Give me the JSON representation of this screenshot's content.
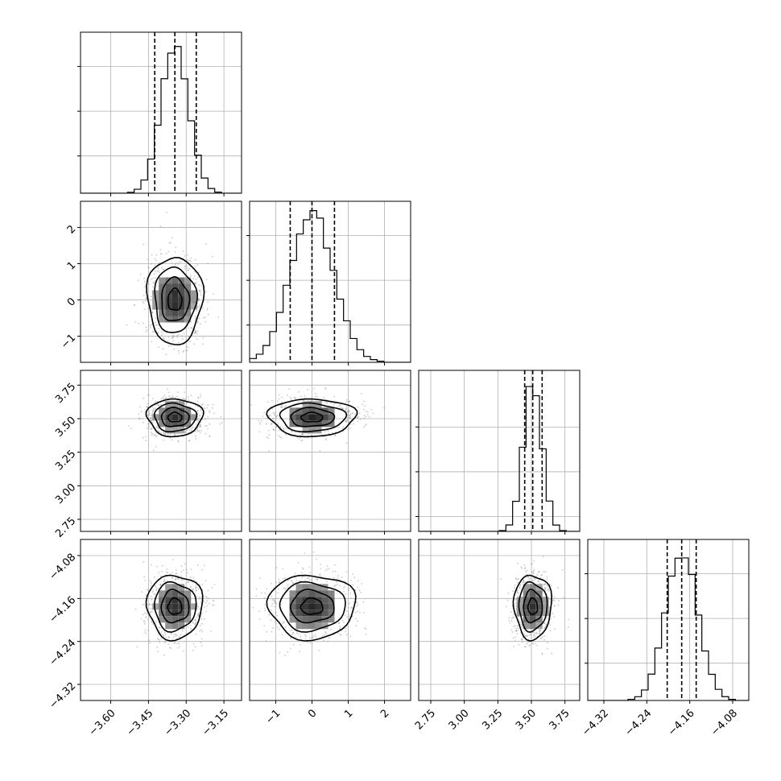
{
  "chart_data": {
    "type": "corner",
    "grid": true,
    "parameters": [
      {
        "range": [
          -3.72,
          -3.08
        ],
        "ticks": [
          -3.6,
          -3.45,
          -3.3,
          -3.15
        ],
        "tick_labels": [
          "−3.60",
          "−3.45",
          "−3.30",
          "−3.15"
        ],
        "mean": -3.345,
        "sd": 0.055,
        "quantiles": [
          -3.425,
          -3.345,
          -3.26
        ],
        "hist_ymax": 1.08,
        "hist_yticks": [
          0.25,
          0.55,
          0.85
        ]
      },
      {
        "range": [
          -1.72,
          2.72
        ],
        "ticks": [
          -1,
          0,
          1,
          2
        ],
        "tick_labels": [
          "−1",
          "0",
          "1",
          "2"
        ],
        "mean": 0.0,
        "sd": 0.6,
        "quantiles": [
          -0.6,
          0.0,
          0.62
        ],
        "hist_ymax": 1.08,
        "hist_yticks": [
          0.25,
          0.55,
          0.85
        ]
      },
      {
        "range": [
          2.66,
          3.86
        ],
        "ticks": [
          2.75,
          3.0,
          3.25,
          3.5,
          3.75
        ],
        "tick_labels": [
          "2.75",
          "3.00",
          "3.25",
          "3.50",
          "3.75"
        ],
        "mean": 3.51,
        "sd": 0.07,
        "quantiles": [
          3.45,
          3.51,
          3.58
        ],
        "hist_ymax": 1.08,
        "hist_yticks": [
          0.1,
          0.4,
          0.7
        ]
      },
      {
        "range": [
          -4.35,
          -4.05
        ],
        "ticks": [
          -4.32,
          -4.24,
          -4.16,
          -4.08
        ],
        "tick_labels": [
          "−4.32",
          "−4.24",
          "−4.16",
          "−4.08"
        ],
        "mean": -4.175,
        "sd": 0.03,
        "quantiles": [
          -4.202,
          -4.175,
          -4.148
        ],
        "hist_ymax": 1.08,
        "hist_yticks": [
          0.25,
          0.55,
          0.85
        ]
      }
    ],
    "colors": {
      "line": "#000000",
      "scatter": "#8a8a8a",
      "grid": "#b0b0b0"
    }
  }
}
